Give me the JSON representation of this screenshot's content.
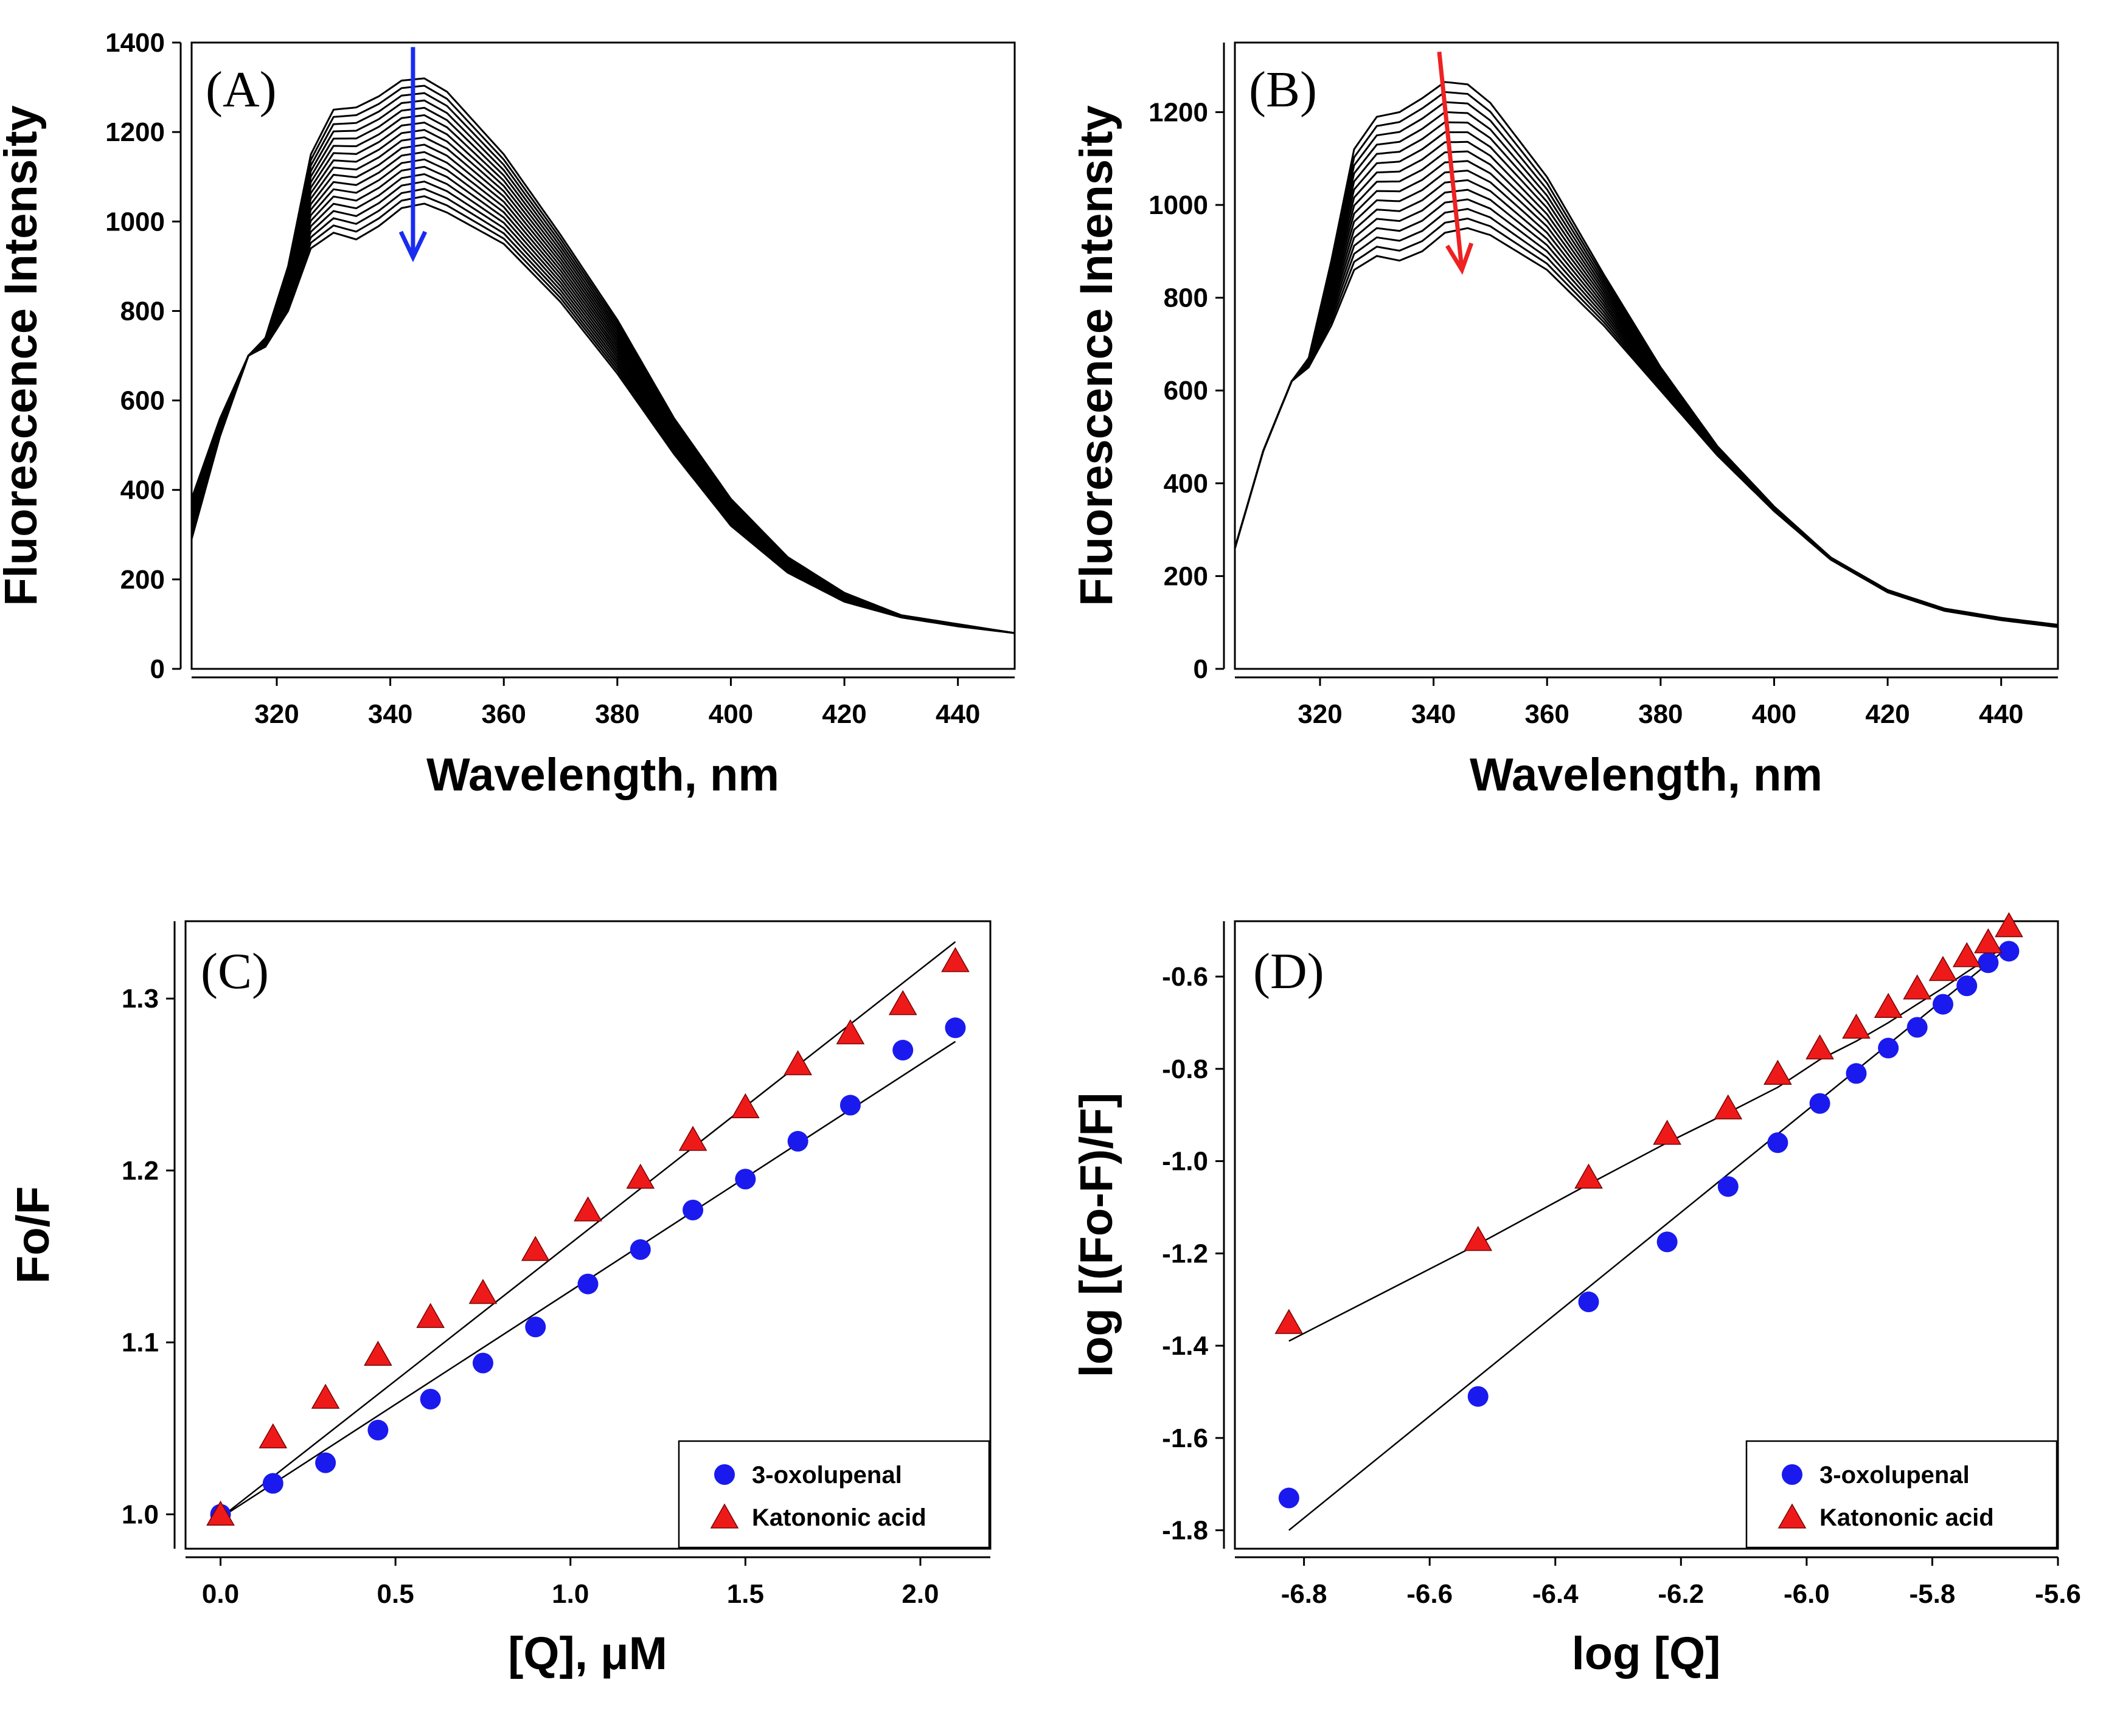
{
  "chart_data": [
    {
      "panel": "A",
      "type": "line",
      "panel_label": "(A)",
      "xlabel": "Wavelength, nm",
      "ylabel": "Fluorescence Intensity",
      "xlim": [
        305,
        450
      ],
      "ylim": [
        0,
        1400
      ],
      "xticks": [
        320,
        340,
        360,
        380,
        400,
        420,
        440
      ],
      "yticks": [
        0,
        200,
        400,
        600,
        800,
        1000,
        1200,
        1400
      ],
      "n_curves": 18,
      "arrow_color": "#1a2cf0",
      "arrow_direction": "down",
      "arrow_x": 344,
      "arrow_y_range": [
        1390,
        920
      ],
      "first_curve": {
        "x": [
          305,
          310,
          315,
          318,
          322,
          326,
          330,
          334,
          338,
          342,
          346,
          350,
          360,
          370,
          380,
          390,
          400,
          410,
          420,
          430,
          440,
          450
        ],
        "y": [
          380,
          560,
          700,
          740,
          900,
          1150,
          1250,
          1255,
          1280,
          1315,
          1320,
          1290,
          1150,
          970,
          780,
          560,
          380,
          250,
          170,
          120,
          100,
          80
        ]
      },
      "last_curve": {
        "x": [
          305,
          310,
          315,
          318,
          322,
          326,
          330,
          334,
          338,
          342,
          346,
          350,
          360,
          370,
          380,
          390,
          400,
          410,
          420,
          430,
          440,
          450
        ],
        "y": [
          290,
          520,
          700,
          720,
          800,
          940,
          975,
          960,
          990,
          1030,
          1040,
          1020,
          950,
          820,
          660,
          480,
          320,
          215,
          150,
          115,
          95,
          80
        ]
      }
    },
    {
      "panel": "B",
      "type": "line",
      "panel_label": "(B)",
      "xlabel": "Wavelength, nm",
      "ylabel": "Fluorescence Intensity",
      "xlim": [
        305,
        450
      ],
      "ylim": [
        0,
        1350
      ],
      "xticks": [
        320,
        340,
        360,
        380,
        400,
        420,
        440
      ],
      "yticks": [
        0,
        200,
        400,
        600,
        800,
        1000,
        1200
      ],
      "n_curves": 16,
      "arrow_color": "#ee2222",
      "arrow_direction": "down",
      "arrow_x_range": [
        341,
        345
      ],
      "arrow_y_range": [
        1330,
        860
      ],
      "first_curve": {
        "x": [
          305,
          310,
          315,
          318,
          322,
          326,
          330,
          334,
          338,
          342,
          346,
          350,
          360,
          370,
          380,
          390,
          400,
          410,
          420,
          430,
          440,
          450
        ],
        "y": [
          260,
          470,
          620,
          670,
          880,
          1120,
          1190,
          1200,
          1230,
          1265,
          1260,
          1220,
          1060,
          850,
          650,
          480,
          350,
          240,
          170,
          130,
          110,
          95
        ]
      },
      "last_curve": {
        "x": [
          305,
          310,
          315,
          318,
          322,
          326,
          330,
          334,
          338,
          342,
          346,
          350,
          360,
          370,
          380,
          390,
          400,
          410,
          420,
          430,
          440,
          450
        ],
        "y": [
          260,
          470,
          620,
          650,
          740,
          860,
          890,
          880,
          900,
          940,
          950,
          935,
          860,
          740,
          600,
          460,
          340,
          235,
          165,
          125,
          105,
          90
        ]
      }
    },
    {
      "panel": "C",
      "type": "scatter",
      "panel_label": "(C)",
      "xlabel": "[Q], μM",
      "ylabel": "Fo/F",
      "xlim": [
        -0.1,
        2.2
      ],
      "ylim": [
        0.98,
        1.345
      ],
      "xticks": [
        0.0,
        0.5,
        1.0,
        1.5,
        2.0
      ],
      "xtick_labels": [
        "0.0",
        "0.5",
        "1.0",
        "1.5",
        "2.0"
      ],
      "yticks": [
        1.0,
        1.1,
        1.2,
        1.3
      ],
      "ytick_labels": [
        "1.0",
        "1.1",
        "1.2",
        "1.3"
      ],
      "series": [
        {
          "name": "3-oxolupenal",
          "marker": "circle",
          "color": "#1a1aee",
          "x": [
            0.0,
            0.15,
            0.3,
            0.45,
            0.6,
            0.75,
            0.9,
            1.05,
            1.2,
            1.35,
            1.5,
            1.65,
            1.8,
            1.95,
            2.1
          ],
          "y": [
            1.0,
            1.018,
            1.03,
            1.049,
            1.067,
            1.088,
            1.109,
            1.134,
            1.154,
            1.177,
            1.195,
            1.217,
            1.238,
            1.27,
            1.283
          ],
          "fit": {
            "x": [
              0.0,
              2.1
            ],
            "y": [
              0.998,
              1.275
            ]
          }
        },
        {
          "name": "Katononic acid",
          "marker": "triangle",
          "color": "#ee1a1a",
          "x": [
            0.0,
            0.15,
            0.3,
            0.45,
            0.6,
            0.75,
            0.9,
            1.05,
            1.2,
            1.35,
            1.5,
            1.65,
            1.8,
            1.95,
            2.1
          ],
          "y": [
            1.0,
            1.045,
            1.068,
            1.093,
            1.115,
            1.129,
            1.154,
            1.177,
            1.196,
            1.218,
            1.237,
            1.262,
            1.28,
            1.297,
            1.322
          ],
          "fit": {
            "x": [
              0.0,
              2.1
            ],
            "y": [
              0.998,
              1.333
            ]
          }
        }
      ],
      "legend": {
        "position": "bottom-right",
        "entries": [
          "3-oxolupenal",
          "Katononic acid"
        ]
      }
    },
    {
      "panel": "D",
      "type": "scatter",
      "panel_label": "(D)",
      "xlabel": "log [Q]",
      "ylabel": "log [(Fo-F)/F]",
      "xlim": [
        -6.91,
        -5.6
      ],
      "ylim": [
        -1.84,
        -0.48
      ],
      "xticks": [
        -6.8,
        -6.6,
        -6.4,
        -6.2,
        -6.0,
        -5.8,
        -5.6
      ],
      "xtick_labels": [
        "-6.8",
        "-6.6",
        "-6.4",
        "-6.2",
        "-6.0",
        "-5.8",
        "-5.6"
      ],
      "yticks": [
        -1.8,
        -1.6,
        -1.4,
        -1.2,
        -1.0,
        -0.8,
        -0.6
      ],
      "ytick_labels": [
        "-1.8",
        "-1.6",
        "-1.4",
        "-1.2",
        "-1.0",
        "-0.8",
        "-0.6"
      ],
      "series": [
        {
          "name": "3-oxolupenal",
          "marker": "circle",
          "color": "#1a1aee",
          "x": [
            -6.824,
            -6.523,
            -6.347,
            -6.222,
            -6.125,
            -6.046,
            -5.979,
            -5.921,
            -5.87,
            -5.824,
            -5.783,
            -5.745,
            -5.711,
            -5.678
          ],
          "y": [
            -1.73,
            -1.51,
            -1.305,
            -1.175,
            -1.055,
            -0.96,
            -0.875,
            -0.81,
            -0.755,
            -0.71,
            -0.66,
            -0.62,
            -0.57,
            -0.545
          ],
          "fit": {
            "x": [
              -6.824,
              -5.678
            ],
            "y": [
              -1.8,
              -0.535
            ]
          }
        },
        {
          "name": "Katononic acid",
          "marker": "triangle",
          "color": "#ee1a1a",
          "x": [
            -6.824,
            -6.523,
            -6.347,
            -6.222,
            -6.125,
            -6.046,
            -5.979,
            -5.921,
            -5.87,
            -5.824,
            -5.783,
            -5.745,
            -5.711,
            -5.678
          ],
          "y": [
            -1.35,
            -1.17,
            -1.035,
            -0.94,
            -0.885,
            -0.81,
            -0.755,
            -0.71,
            -0.665,
            -0.625,
            -0.585,
            -0.555,
            -0.525,
            -0.49
          ],
          "fit": {
            "x": [
              -6.824,
              -6.523,
              -6.347,
              -6.222,
              -6.125,
              -6.046,
              -5.979,
              -5.921,
              -5.87,
              -5.824,
              -5.783,
              -5.745,
              -5.711,
              -5.678
            ],
            "y": [
              -1.39,
              -1.18,
              -1.05,
              -0.96,
              -0.895,
              -0.84,
              -0.78,
              -0.74,
              -0.7,
              -0.66,
              -0.625,
              -0.59,
              -0.56,
              -0.525
            ]
          }
        }
      ],
      "legend": {
        "position": "bottom-right",
        "entries": [
          "3-oxolupenal",
          "Katononic acid"
        ]
      }
    }
  ]
}
